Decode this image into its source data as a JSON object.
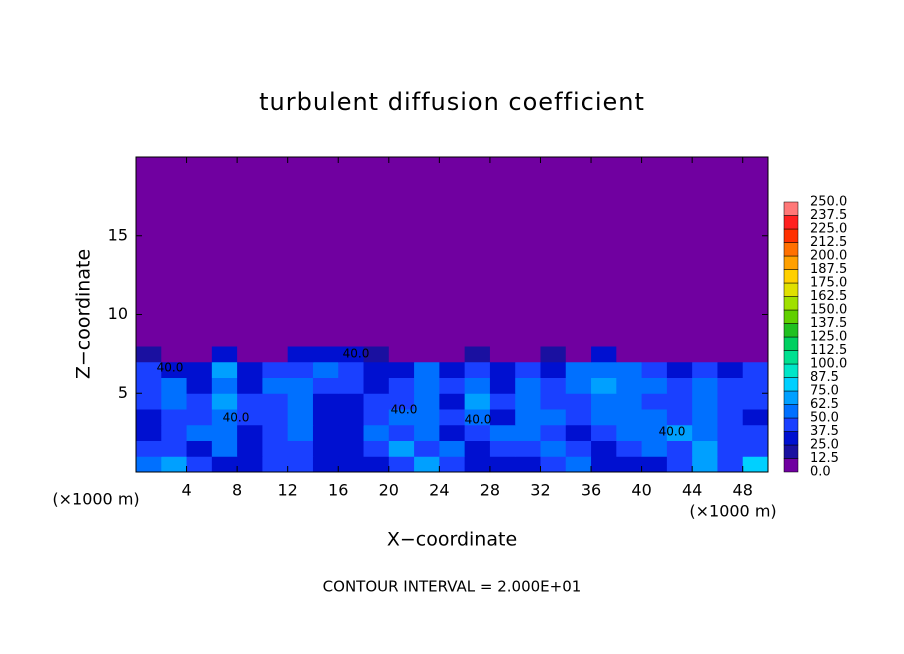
{
  "chart_data": {
    "type": "heatmap",
    "title": "turbulent diffusion coefficient",
    "x_label": "X−coordinate",
    "y_label": "Z−coordinate",
    "x_unit_left": "(×1000 m)",
    "x_unit_right": "(×1000 m)",
    "footnote": "CONTOUR INTERVAL = 2.000E+01",
    "xlim": [
      0,
      50
    ],
    "ylim": [
      0,
      20
    ],
    "xticks": [
      4,
      8,
      12,
      16,
      20,
      24,
      28,
      32,
      36,
      40,
      44,
      48
    ],
    "yticks": [
      5,
      10,
      15
    ],
    "x_edges": [
      0,
      2,
      4,
      6,
      8,
      10,
      12,
      14,
      16,
      18,
      20,
      22,
      24,
      26,
      28,
      30,
      32,
      34,
      36,
      38,
      40,
      42,
      44,
      46,
      48,
      50
    ],
    "z_edges": [
      0,
      1,
      2,
      3,
      4,
      5,
      6,
      7,
      8,
      20
    ],
    "values": [
      [
        55,
        70,
        40,
        35,
        30,
        45,
        40,
        35,
        30,
        35,
        40,
        70,
        40,
        35,
        30,
        30,
        40,
        60,
        30,
        30,
        35,
        40,
        65,
        45,
        80
      ],
      [
        40,
        45,
        35,
        60,
        35,
        40,
        45,
        30,
        30,
        40,
        70,
        40,
        50,
        35,
        40,
        45,
        60,
        40,
        35,
        40,
        55,
        45,
        70,
        40,
        45
      ],
      [
        35,
        40,
        50,
        55,
        35,
        40,
        60,
        35,
        30,
        55,
        45,
        60,
        35,
        40,
        50,
        55,
        45,
        35,
        40,
        55,
        50,
        65,
        60,
        45,
        40
      ],
      [
        35,
        45,
        40,
        60,
        45,
        40,
        55,
        30,
        35,
        45,
        50,
        55,
        40,
        60,
        35,
        60,
        55,
        40,
        55,
        50,
        55,
        45,
        50,
        40,
        35
      ],
      [
        40,
        55,
        40,
        65,
        40,
        45,
        55,
        30,
        35,
        40,
        45,
        60,
        35,
        65,
        40,
        60,
        40,
        45,
        60,
        50,
        45,
        40,
        55,
        45,
        45
      ],
      [
        40,
        55,
        30,
        60,
        35,
        50,
        55,
        40,
        40,
        35,
        45,
        60,
        40,
        50,
        35,
        55,
        40,
        60,
        70,
        55,
        50,
        45,
        60,
        40,
        40
      ],
      [
        40,
        35,
        25,
        65,
        30,
        40,
        45,
        50,
        40,
        35,
        30,
        50,
        35,
        40,
        30,
        45,
        35,
        50,
        55,
        50,
        40,
        35,
        40,
        30,
        40
      ],
      [
        15,
        10,
        5,
        30,
        5,
        10,
        25,
        30,
        30,
        20,
        5,
        10,
        5,
        20,
        5,
        5,
        20,
        10,
        25,
        5,
        0,
        0,
        5,
        0,
        10
      ],
      [
        0,
        0,
        0,
        0,
        0,
        0,
        0,
        0,
        0,
        0,
        0,
        0,
        0,
        0,
        0,
        0,
        0,
        0,
        0,
        0,
        0,
        0,
        0,
        0,
        0
      ]
    ],
    "colorbar_ticks": [
      {
        "value": 0,
        "label": "0.0"
      },
      {
        "value": 12.5,
        "label": "12.5"
      },
      {
        "value": 25,
        "label": "25.0"
      },
      {
        "value": 37.5,
        "label": "37.5"
      },
      {
        "value": 50,
        "label": "50.0"
      },
      {
        "value": 62.5,
        "label": "62.5"
      },
      {
        "value": 75,
        "label": "75.0"
      },
      {
        "value": 87.5,
        "label": "87.5"
      },
      {
        "value": 100,
        "label": "100.0"
      },
      {
        "value": 112.5,
        "label": "112.5"
      },
      {
        "value": 125,
        "label": "125.0"
      },
      {
        "value": 137.5,
        "label": "137.5"
      },
      {
        "value": 150,
        "label": "150.0"
      },
      {
        "value": 162.5,
        "label": "162.5"
      },
      {
        "value": 175,
        "label": "175.0"
      },
      {
        "value": 187.5,
        "label": "187.5"
      },
      {
        "value": 200,
        "label": "200.0"
      },
      {
        "value": 212.5,
        "label": "212.5"
      },
      {
        "value": 225,
        "label": "225.0"
      },
      {
        "value": 237.5,
        "label": "237.5"
      },
      {
        "value": 250,
        "label": "250.0"
      }
    ],
    "colors": [
      "#7000a0",
      "#1a10a0",
      "#0010d0",
      "#1a40ff",
      "#0070ff",
      "#00a0ff",
      "#00d0ff",
      "#00e6c8",
      "#00e090",
      "#00d060",
      "#20c020",
      "#60d000",
      "#a0e000",
      "#e0e000",
      "#ffd000",
      "#ffa000",
      "#ff7000",
      "#ff3000",
      "#ff2020",
      "#ff7878"
    ],
    "contour_labels": [
      "40.0",
      "40.0",
      "40.0",
      "40.0",
      "40.0",
      "40.0"
    ]
  }
}
